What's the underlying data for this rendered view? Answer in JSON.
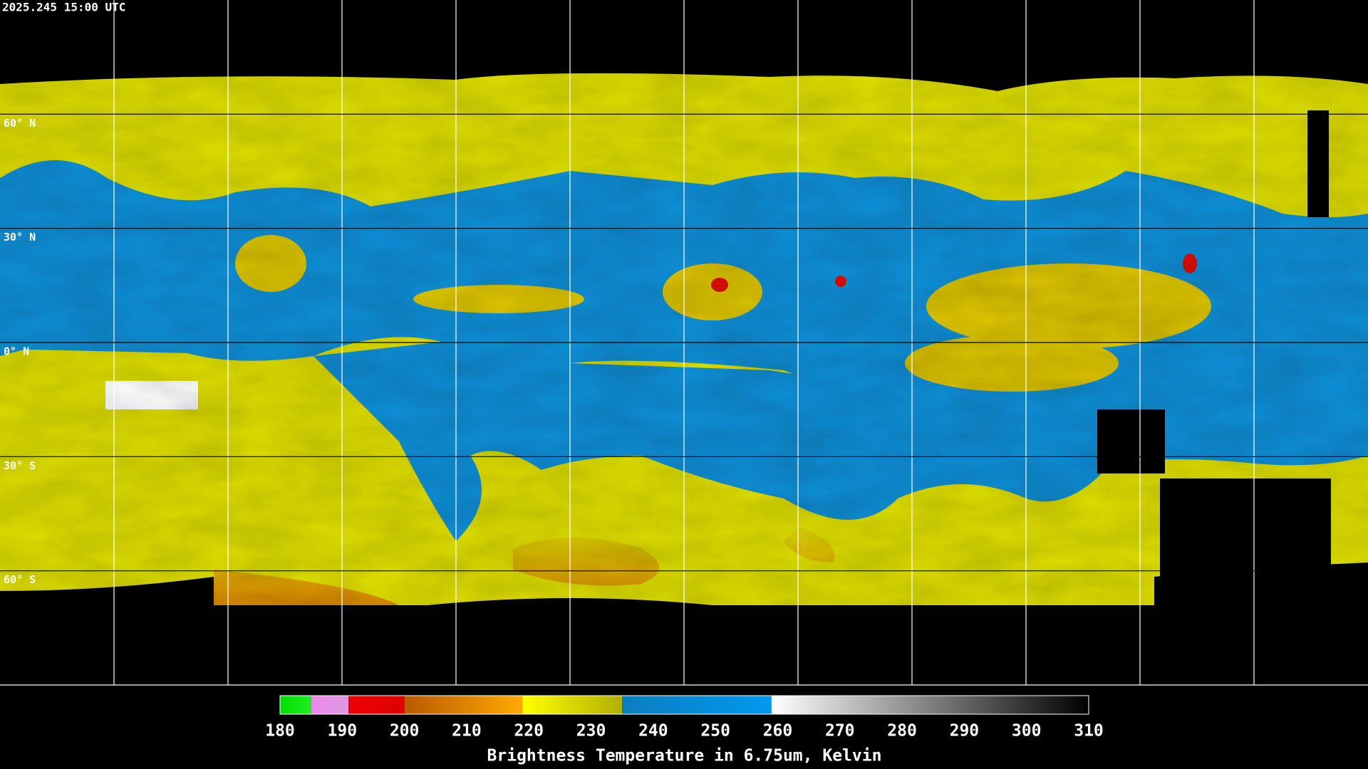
{
  "title": "2025.245 15:00 UTC",
  "map": {
    "lat_lines": [
      {
        "value": 60,
        "label": "60° N"
      },
      {
        "value": 30,
        "label": "30° N"
      },
      {
        "value": 0,
        "label": "0° N"
      },
      {
        "value": -30,
        "label": "30° S"
      },
      {
        "value": -60,
        "label": "60° S"
      }
    ]
  },
  "colorbar": {
    "range": [
      180,
      310
    ],
    "ticks": [
      180,
      190,
      200,
      210,
      220,
      230,
      240,
      250,
      260,
      270,
      280,
      290,
      300,
      310
    ],
    "segments": [
      {
        "from": 180,
        "to": 185,
        "colors": [
          "#00dd00",
          "#22ee22"
        ]
      },
      {
        "from": 185,
        "to": 191,
        "colors": [
          "#ee88ee",
          "#dd99dd"
        ]
      },
      {
        "from": 191,
        "to": 200,
        "colors": [
          "#ee0000",
          "#dd0000"
        ]
      },
      {
        "from": 200,
        "to": 219,
        "colors": [
          "#b85a00",
          "#ffaa00"
        ]
      },
      {
        "from": 219,
        "to": 235,
        "colors": [
          "#ffff00",
          "#b0b000"
        ]
      },
      {
        "from": 235,
        "to": 259,
        "colors": [
          "#0a7fc0",
          "#0099ee"
        ]
      },
      {
        "from": 259,
        "to": 310,
        "colors": [
          "#ffffff",
          "#000000"
        ]
      }
    ],
    "label": "Brightness Temperature in 6.75um, Kelvin"
  }
}
